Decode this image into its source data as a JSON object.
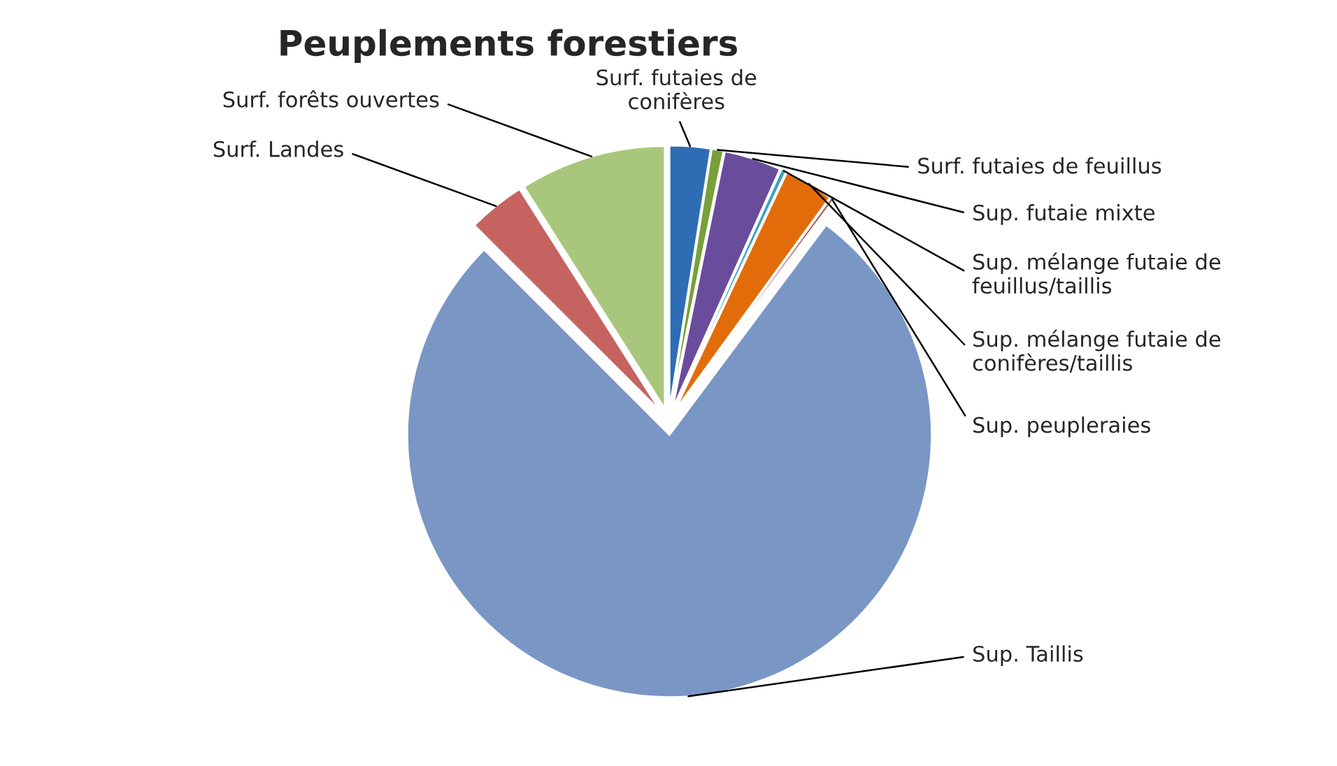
{
  "chart_data": {
    "type": "pie",
    "title": "Peuplements forestiers",
    "categories": [
      "Surf. futaies de\nconifères",
      "Surf. futaies de feuillus",
      "Sup. futaie mixte",
      "Sup. mélange futaie de\nfeuillus/taillis",
      "Sup. mélange futaie de\nconifères/taillis",
      "Sup. peupleraies",
      "Sup. Taillis",
      "Surf. Landes",
      "Surf. forêts ouvertes"
    ],
    "values": [
      2.5,
      0.7,
      3.5,
      0.3,
      3.0,
      0.2,
      77.3,
      3.5,
      9.0
    ],
    "colors": [
      "#2e6db4",
      "#77a03a",
      "#6a4c9c",
      "#3f9fc0",
      "#e36c0a",
      "#b05a5a",
      "#7a96c4",
      "#c66360",
      "#a9c77c"
    ],
    "legend": false
  }
}
